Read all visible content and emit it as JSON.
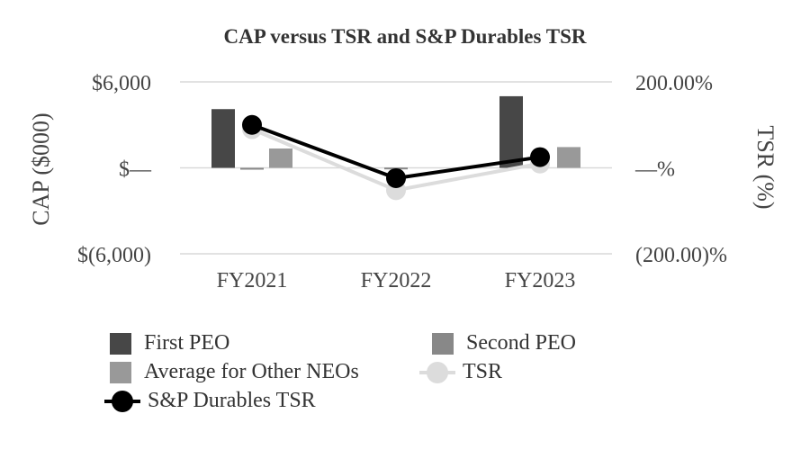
{
  "chart_data": {
    "type": "bar",
    "title": "CAP versus TSR and S&P Durables TSR",
    "categories": [
      "FY2021",
      "FY2022",
      "FY2023"
    ],
    "y_left": {
      "label": "CAP ($000)",
      "ylim": [
        -6000,
        6000
      ],
      "ticks": [
        6000,
        0,
        -6000
      ],
      "tick_labels": [
        "$6,000",
        "$—",
        "$(6,000)"
      ]
    },
    "y_right": {
      "label": "TSR (%)",
      "ylim": [
        -200,
        200
      ],
      "ticks": [
        200,
        0,
        -200
      ],
      "tick_labels": [
        "200.00%",
        "—%",
        "(200.00)%"
      ]
    },
    "bar_series": [
      {
        "name": "First PEO",
        "color": "#474747",
        "values": [
          4100,
          null,
          5000
        ]
      },
      {
        "name": "Second PEO",
        "color": "#888888",
        "values": [
          -50,
          20,
          null
        ]
      },
      {
        "name": "Average for Other NEOs",
        "color": "#999999",
        "values": [
          1350,
          null,
          1450
        ]
      }
    ],
    "line_series": [
      {
        "name": "TSR",
        "axis": "right",
        "color": "#dcdcdc",
        "values": [
          90,
          -52,
          10
        ]
      },
      {
        "name": "S&P Durables TSR",
        "axis": "right",
        "color": "#000000",
        "values": [
          100,
          -24,
          25
        ]
      }
    ],
    "grid": true,
    "legend_position": "bottom"
  },
  "legend": [
    {
      "label": "First PEO",
      "kind": "swatch",
      "color": "#474747"
    },
    {
      "label": "Second PEO",
      "kind": "swatch",
      "color": "#888888"
    },
    {
      "label": "Average for Other NEOs",
      "kind": "swatch",
      "color": "#999999"
    },
    {
      "label": "TSR",
      "kind": "line",
      "color": "#dcdcdc"
    },
    {
      "label": "S&P Durables TSR",
      "kind": "line",
      "color": "#000000"
    }
  ]
}
